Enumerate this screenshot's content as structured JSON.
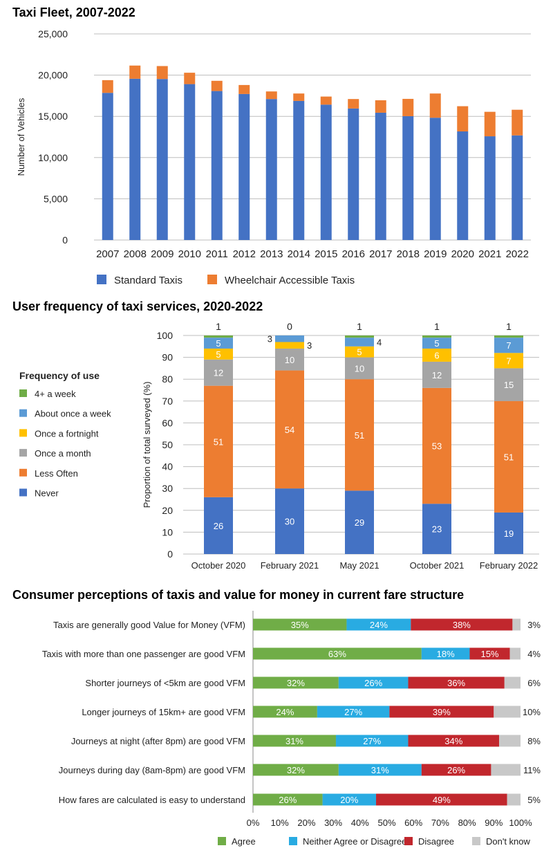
{
  "chart_data": [
    {
      "type": "bar",
      "stacked": true,
      "title": "Taxi Fleet, 2007-2022",
      "xlabel": "",
      "ylabel": "Number of Vehicles",
      "ylim": [
        0,
        25000
      ],
      "yticks": [
        "0",
        "5,000",
        "10,000",
        "15,000",
        "20,000",
        "25,000"
      ],
      "grid": true,
      "legend": "bottom",
      "categories": [
        "2007",
        "2008",
        "2009",
        "2010",
        "2011",
        "2012",
        "2013",
        "2014",
        "2015",
        "2016",
        "2017",
        "2018",
        "2019",
        "2020",
        "2021",
        "2022"
      ],
      "series": [
        {
          "name": "Standard Taxis",
          "color": "#4472c4",
          "values": [
            17850,
            19560,
            19530,
            18910,
            18070,
            17710,
            17100,
            16870,
            16420,
            15950,
            15440,
            15020,
            14830,
            13170,
            12580,
            12690
          ]
        },
        {
          "name": "Wheelchair Accessible Taxis",
          "color": "#ed7d31",
          "values": [
            1540,
            1600,
            1570,
            1380,
            1240,
            1090,
            920,
            900,
            980,
            1150,
            1510,
            2100,
            2940,
            3060,
            2970,
            3110
          ]
        }
      ]
    },
    {
      "type": "bar",
      "stacked": true,
      "title": "User frequency of taxi services, 2020-2022",
      "xlabel": "",
      "ylabel": "Proportion of total surveyed (%)",
      "ylim": [
        0,
        100
      ],
      "yticks": [
        "0",
        "10",
        "20",
        "30",
        "40",
        "50",
        "60",
        "70",
        "80",
        "90",
        "100"
      ],
      "grid": true,
      "legend": "left",
      "legend_title": "Frequency of use",
      "categories": [
        "October 2020",
        "February 2021",
        "May 2021",
        "October 2021",
        "February 2022"
      ],
      "series": [
        {
          "name": "Never",
          "color": "#4472c4",
          "values": [
            26,
            30,
            29,
            23,
            19
          ]
        },
        {
          "name": "Less Often",
          "color": "#ed7d31",
          "values": [
            51,
            54,
            51,
            53,
            51
          ]
        },
        {
          "name": "Once a month",
          "color": "#a5a5a5",
          "values": [
            12,
            10,
            10,
            12,
            15
          ]
        },
        {
          "name": "Once a fortnight",
          "color": "#ffc000",
          "values": [
            5,
            3,
            5,
            6,
            7
          ]
        },
        {
          "name": "About once a week",
          "color": "#5b9bd5",
          "values": [
            5,
            3,
            4,
            5,
            7
          ]
        },
        {
          "name": "4+ a week",
          "color": "#70ad47",
          "values": [
            1,
            0,
            1,
            1,
            1
          ]
        }
      ]
    },
    {
      "type": "bar",
      "orientation": "horizontal",
      "stacked": true,
      "title": "Consumer perceptions of taxis and value for money in current fare structure",
      "xlabel": "",
      "ylabel": "",
      "xlim": [
        0,
        100
      ],
      "xticks": [
        "0%",
        "10%",
        "20%",
        "30%",
        "40%",
        "50%",
        "60%",
        "70%",
        "80%",
        "90%",
        "100%"
      ],
      "grid": false,
      "legend": "bottom",
      "categories": [
        "Taxis are generally good Value for Money (VFM)",
        "Taxis with more than one passenger are good VFM",
        "Shorter journeys of <5km are good VFM",
        "Longer journeys of 15km+ are good VFM",
        "Journeys at night (after 8pm) are good VFM",
        "Journeys during day (8am-8pm) are good VFM",
        "How fares are calculated is easy to understand"
      ],
      "series": [
        {
          "name": "Agree",
          "color": "#70ad47",
          "values": [
            35,
            63,
            32,
            24,
            31,
            32,
            26
          ]
        },
        {
          "name": "Neither Agree or Disagree",
          "color": "#29abe2",
          "values": [
            24,
            18,
            26,
            27,
            27,
            31,
            20
          ]
        },
        {
          "name": "Disagree",
          "color": "#c1272d",
          "values": [
            38,
            15,
            36,
            39,
            34,
            26,
            49
          ]
        },
        {
          "name": "Don't know",
          "color": "#c8c8c8",
          "values": [
            3,
            4,
            6,
            10,
            8,
            11,
            5
          ]
        }
      ]
    }
  ]
}
